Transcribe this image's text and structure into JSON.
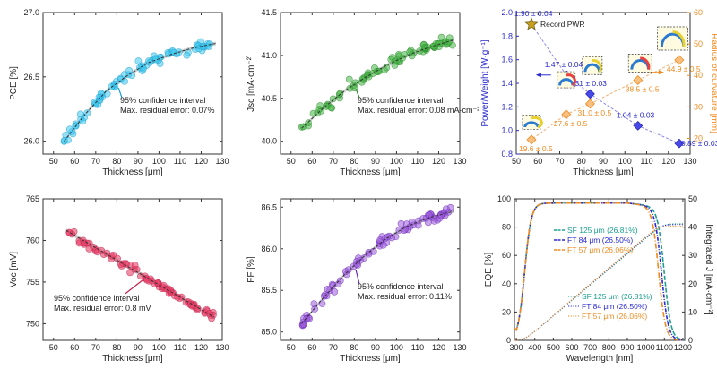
{
  "chart_data": [
    {
      "id": "pce",
      "type": "scatter",
      "title": "",
      "xlabel": "Thickness [μm]",
      "ylabel": "PCE [%]",
      "xlim": [
        45,
        130
      ],
      "ylim": [
        25.9,
        27.0
      ],
      "xticks": [
        50,
        60,
        70,
        80,
        90,
        100,
        110,
        120,
        130
      ],
      "yticks": [
        26.0,
        26.5,
        27.0
      ],
      "ytick_labels": [
        "26.0",
        "26.5",
        "27.0"
      ],
      "color": "#3fc8ef",
      "edge": "#1a9fd0",
      "fit": {
        "type": "quadratic",
        "x": [
          55,
          65,
          75,
          85,
          95,
          105,
          115,
          127
        ],
        "y": [
          26.0,
          26.21,
          26.39,
          26.51,
          26.61,
          26.67,
          26.72,
          26.76
        ]
      },
      "x_range": [
        55,
        127
      ],
      "scatter": 0.035,
      "annotation": [
        "95% confidence interval",
        "Max. residual error: 0.07%"
      ]
    },
    {
      "id": "jsc",
      "type": "scatter",
      "title": "",
      "xlabel": "Thickness [μm]",
      "ylabel": "Jsc [mA·cm⁻²]",
      "xlim": [
        45,
        130
      ],
      "ylim": [
        39.85,
        41.5
      ],
      "xticks": [
        50,
        60,
        70,
        80,
        90,
        100,
        110,
        120,
        130
      ],
      "yticks": [
        40.0,
        40.5,
        41.0,
        41.5
      ],
      "ytick_labels": [
        "40.0",
        "40.5",
        "41.0",
        "41.5"
      ],
      "color": "#45b545",
      "edge": "#2a8a2a",
      "fit": {
        "type": "quadratic",
        "x": [
          55,
          65,
          75,
          85,
          95,
          105,
          115,
          127
        ],
        "y": [
          40.15,
          40.38,
          40.58,
          40.74,
          40.88,
          41.0,
          41.09,
          41.18
        ]
      },
      "x_range": [
        55,
        127
      ],
      "scatter": 0.05,
      "annotation": [
        "95% confidence interval",
        "Max. residual error: 0.08 mA·cm⁻²"
      ]
    },
    {
      "id": "pw-roc",
      "type": "scatter",
      "title": "",
      "xlabel": "Thickness [μm]",
      "ylabel": "Power/Weight [W·g⁻¹]",
      "ylabel_right": "Radius of curvature [mm]",
      "xlim": [
        50,
        130
      ],
      "ylim": [
        0.8,
        2.0
      ],
      "ylim_right": [
        15,
        60
      ],
      "xticks": [
        50,
        60,
        70,
        80,
        90,
        100,
        110,
        120,
        130
      ],
      "yticks": [
        0.8,
        1.0,
        1.2,
        1.4,
        1.6,
        1.8,
        2.0
      ],
      "ytick_labels": [
        "0.8",
        "1.0",
        "1.2",
        "1.4",
        "1.6",
        "1.8",
        "2.0"
      ],
      "yticks_right": [
        20,
        30,
        40,
        50,
        60
      ],
      "left_color": "#2a2ad0",
      "right_color": "#f08a1e",
      "series": [
        {
          "name": "Power/Weight",
          "x": [
            57,
            73,
            84,
            106,
            125
          ],
          "y": [
            1.9,
            1.47,
            1.31,
            1.04,
            0.89
          ],
          "labels": [
            "1.90 ± 0.04",
            "1.47 ± 0.04",
            "1.31 ± 0.03",
            "1.04 ± 0.03",
            "0.89 ± 0.03"
          ]
        },
        {
          "name": "Radius of curvature",
          "x": [
            57,
            73,
            84,
            106,
            125
          ],
          "y": [
            19.6,
            27.6,
            31.0,
            38.5,
            44.9
          ],
          "labels": [
            "19.6 ± 0.5",
            "27.6 ± 0.5",
            "31.0 ± 0.5",
            "38.5 ± 0.5",
            "44.9 ± 0.5"
          ]
        }
      ],
      "record_label": "Record PWR"
    },
    {
      "id": "voc",
      "type": "scatter",
      "title": "",
      "xlabel": "Thickness [μm]",
      "ylabel": "Voc [mV]",
      "xlim": [
        45,
        130
      ],
      "ylim": [
        748,
        765
      ],
      "xticks": [
        50,
        60,
        70,
        80,
        90,
        100,
        110,
        120,
        130
      ],
      "yticks": [
        750,
        755,
        760,
        765
      ],
      "ytick_labels": [
        "750",
        "755",
        "760",
        "765"
      ],
      "color": "#e8436a",
      "edge": "#c0244c",
      "fit": {
        "type": "linear",
        "x": [
          56,
          126
        ],
        "y": [
          761.2,
          750.8
        ]
      },
      "x_range": [
        56,
        126
      ],
      "scatter": 0.25,
      "annotation": [
        "95% confidence interval",
        "Max. residual error: 0.8 mV"
      ]
    },
    {
      "id": "ff",
      "type": "scatter",
      "title": "",
      "xlabel": "Thickness [μm]",
      "ylabel": "FF [%]",
      "xlim": [
        45,
        130
      ],
      "ylim": [
        84.9,
        86.6
      ],
      "xticks": [
        50,
        60,
        70,
        80,
        90,
        100,
        110,
        120,
        130
      ],
      "yticks": [
        85.0,
        85.5,
        86.0,
        86.5
      ],
      "ytick_labels": [
        "85.0",
        "85.5",
        "86.0",
        "86.5"
      ],
      "color": "#9a5ad8",
      "edge": "#6a2ab8",
      "fit": {
        "type": "quadratic",
        "x": [
          55,
          65,
          75,
          85,
          95,
          105,
          115,
          127
        ],
        "y": [
          85.1,
          85.4,
          85.68,
          85.92,
          86.12,
          86.27,
          86.37,
          86.45
        ]
      },
      "x_range": [
        55,
        127
      ],
      "scatter": 0.05,
      "annotation": [
        "95% confidence interval",
        "Max. residual error: 0.11%"
      ]
    },
    {
      "id": "eqe",
      "type": "line",
      "title": "",
      "xlabel": "Wavelength [nm]",
      "ylabel": "EQE [%]",
      "ylabel_right": "Integrated J [mA·cm⁻²]",
      "xlim": [
        290,
        1210
      ],
      "ylim": [
        0,
        100
      ],
      "ylim_right": [
        0,
        50
      ],
      "xticks": [
        300,
        400,
        500,
        600,
        700,
        800,
        900,
        1000,
        1100,
        1200
      ],
      "yticks": [
        0,
        20,
        40,
        60,
        80,
        100
      ],
      "yticks_right": [
        0,
        10,
        20,
        30,
        40,
        50
      ],
      "series": [
        {
          "name": "SF 125 μm (26.81%)",
          "color": "#1fa090",
          "cutoff": 1140,
          "jsc": 41.2
        },
        {
          "name": "FT 84 μm (26.50%)",
          "color": "#2a2ad0",
          "cutoff": 1125,
          "jsc": 40.9
        },
        {
          "name": "FT 57 μm (26.06%)",
          "color": "#f08a1e",
          "cutoff": 1110,
          "jsc": 40.3
        }
      ],
      "legend_upper": [
        "SF 125 μm (26.81%)",
        "FT 84 μm (26.50%)",
        "FT 57 μm (26.06%)"
      ],
      "legend_lower": [
        "SF 125 μm (26.81%)",
        "FT 84 μm (26.50%)",
        "FT 57 μm (26.06%)"
      ]
    }
  ]
}
